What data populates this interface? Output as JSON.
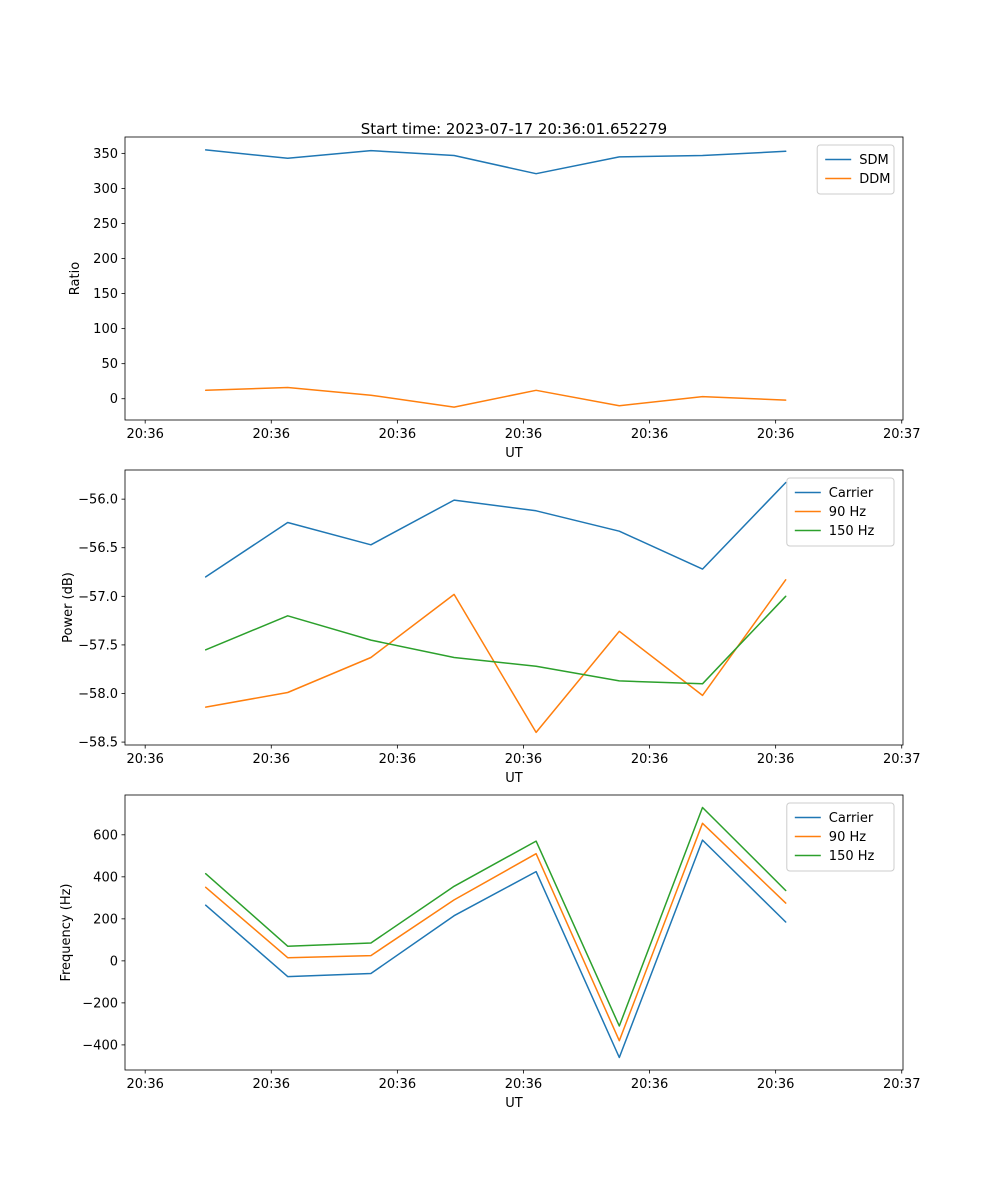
{
  "figure": {
    "background": "#ffffff"
  },
  "colors": {
    "blue": "#1f77b4",
    "orange": "#ff7f0e",
    "green": "#2ca02c",
    "axis": "#000000",
    "legend_border": "#cccccc"
  },
  "chart_data": [
    {
      "type": "line",
      "title": "Start time: 2023-07-17 20:36:01.652279",
      "xlabel": "UT",
      "ylabel": "Ratio",
      "grid": false,
      "legend_position": "upper right",
      "xlim": [
        -0.16,
        6.01
      ],
      "ylim": [
        -30.35,
        373.35
      ],
      "x_ticks": [
        {
          "v": 0,
          "label": "20:36"
        },
        {
          "v": 1,
          "label": "20:36"
        },
        {
          "v": 2,
          "label": "20:36"
        },
        {
          "v": 3,
          "label": "20:36"
        },
        {
          "v": 4,
          "label": "20:36"
        },
        {
          "v": 5,
          "label": "20:36"
        },
        {
          "v": 6,
          "label": "20:37"
        }
      ],
      "y_ticks": [
        {
          "v": 0,
          "label": "0"
        },
        {
          "v": 50,
          "label": "50"
        },
        {
          "v": 100,
          "label": "100"
        },
        {
          "v": 150,
          "label": "150"
        },
        {
          "v": 200,
          "label": "200"
        },
        {
          "v": 250,
          "label": "250"
        },
        {
          "v": 300,
          "label": "300"
        },
        {
          "v": 350,
          "label": "350"
        }
      ],
      "x": [
        0.48,
        1.13,
        1.79,
        2.45,
        3.1,
        3.76,
        4.42,
        5.08
      ],
      "series": [
        {
          "name": "SDM",
          "color": "#1f77b4",
          "values": [
            355,
            343,
            354,
            347,
            321,
            345,
            347,
            353
          ]
        },
        {
          "name": "DDM",
          "color": "#ff7f0e",
          "values": [
            12,
            16,
            5,
            -12,
            12,
            -10,
            3,
            -2
          ]
        }
      ]
    },
    {
      "type": "line",
      "title": "",
      "xlabel": "UT",
      "ylabel": "Power (dB)",
      "grid": false,
      "legend_position": "upper right",
      "xlim": [
        -0.16,
        6.01
      ],
      "ylim": [
        -58.53,
        -55.7
      ],
      "x_ticks": [
        {
          "v": 0,
          "label": "20:36"
        },
        {
          "v": 1,
          "label": "20:36"
        },
        {
          "v": 2,
          "label": "20:36"
        },
        {
          "v": 3,
          "label": "20:36"
        },
        {
          "v": 4,
          "label": "20:36"
        },
        {
          "v": 5,
          "label": "20:36"
        },
        {
          "v": 6,
          "label": "20:37"
        }
      ],
      "y_ticks": [
        {
          "v": -58.5,
          "label": "−58.5"
        },
        {
          "v": -58.0,
          "label": "−58.0"
        },
        {
          "v": -57.5,
          "label": "−57.5"
        },
        {
          "v": -57.0,
          "label": "−57.0"
        },
        {
          "v": -56.5,
          "label": "−56.5"
        },
        {
          "v": -56.0,
          "label": "−56.0"
        }
      ],
      "x": [
        0.48,
        1.13,
        1.79,
        2.45,
        3.1,
        3.76,
        4.42,
        5.08
      ],
      "series": [
        {
          "name": "Carrier",
          "color": "#1f77b4",
          "values": [
            -56.8,
            -56.24,
            -56.47,
            -56.01,
            -56.12,
            -56.33,
            -56.72,
            -55.83
          ]
        },
        {
          "name": "90 Hz",
          "color": "#ff7f0e",
          "values": [
            -58.14,
            -57.99,
            -57.63,
            -56.98,
            -58.4,
            -57.36,
            -58.02,
            -56.83
          ]
        },
        {
          "name": "150 Hz",
          "color": "#2ca02c",
          "values": [
            -57.55,
            -57.2,
            -57.45,
            -57.63,
            -57.72,
            -57.87,
            -57.9,
            -57.0
          ]
        }
      ]
    },
    {
      "type": "line",
      "title": "",
      "xlabel": "UT",
      "ylabel": "Frequency (Hz)",
      "grid": false,
      "legend_position": "upper right",
      "xlim": [
        -0.16,
        6.01
      ],
      "ylim": [
        -519.5,
        789.5
      ],
      "x_ticks": [
        {
          "v": 0,
          "label": "20:36"
        },
        {
          "v": 1,
          "label": "20:36"
        },
        {
          "v": 2,
          "label": "20:36"
        },
        {
          "v": 3,
          "label": "20:36"
        },
        {
          "v": 4,
          "label": "20:36"
        },
        {
          "v": 5,
          "label": "20:36"
        },
        {
          "v": 6,
          "label": "20:37"
        }
      ],
      "y_ticks": [
        {
          "v": -400,
          "label": "−400"
        },
        {
          "v": -200,
          "label": "−200"
        },
        {
          "v": 0,
          "label": "0"
        },
        {
          "v": 200,
          "label": "200"
        },
        {
          "v": 400,
          "label": "400"
        },
        {
          "v": 600,
          "label": "600"
        }
      ],
      "x": [
        0.48,
        1.13,
        1.79,
        2.45,
        3.1,
        3.76,
        4.42,
        5.08
      ],
      "series": [
        {
          "name": "Carrier",
          "color": "#1f77b4",
          "values": [
            265,
            -75,
            -60,
            215,
            425,
            -460,
            575,
            185
          ]
        },
        {
          "name": "90 Hz",
          "color": "#ff7f0e",
          "values": [
            350,
            15,
            25,
            290,
            510,
            -380,
            655,
            275
          ]
        },
        {
          "name": "150 Hz",
          "color": "#2ca02c",
          "values": [
            415,
            70,
            85,
            355,
            570,
            -310,
            730,
            335
          ]
        }
      ]
    }
  ]
}
